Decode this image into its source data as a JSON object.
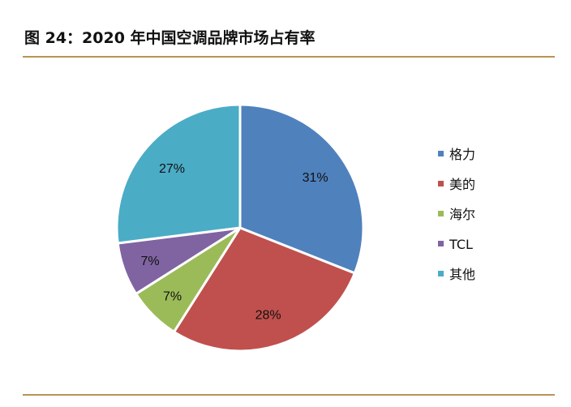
{
  "figure": {
    "title": "图 24：2020 年中国空调品牌市场占有率"
  },
  "chart_data": {
    "type": "pie",
    "title": "",
    "legend_position": "right",
    "slices": [
      {
        "label": "格力",
        "value": 31,
        "display": "31%",
        "color": "#4f81bd"
      },
      {
        "label": "美的",
        "value": 28,
        "display": "28%",
        "color": "#c0504d"
      },
      {
        "label": "海尔",
        "value": 7,
        "display": "7%",
        "color": "#9bbb59"
      },
      {
        "label": "TCL",
        "value": 7,
        "display": "7%",
        "color": "#8064a2"
      },
      {
        "label": "其他",
        "value": 27,
        "display": "27%",
        "color": "#4bacc6"
      }
    ]
  }
}
